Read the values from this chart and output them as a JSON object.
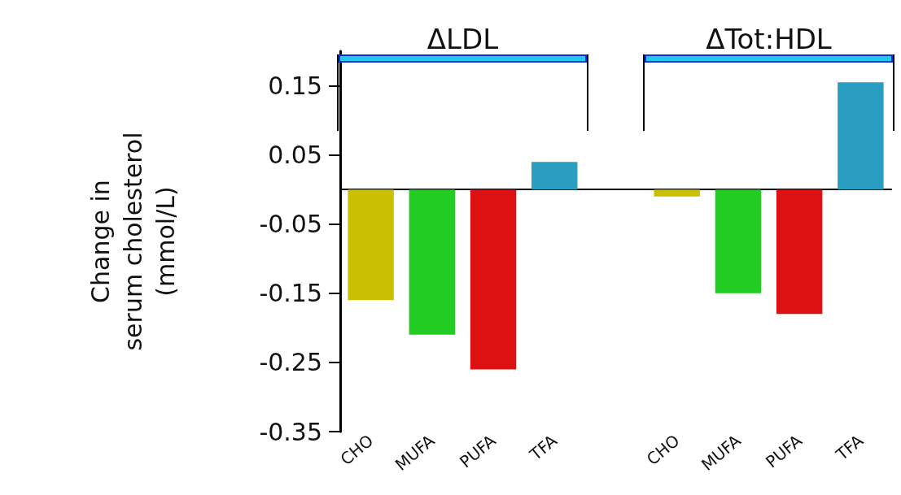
{
  "chart_data": {
    "type": "bar",
    "ylabel": "Change in\nserum cholesterol\n(mmol/L)",
    "categories": [
      "CHO",
      "MUFA",
      "PUFA",
      "TFA",
      null,
      "CHO",
      "MUFA",
      "PUFA",
      "TFA"
    ],
    "values": [
      -0.16,
      -0.21,
      -0.26,
      0.04,
      null,
      -0.01,
      -0.15,
      -0.18,
      0.155
    ],
    "colors": [
      "#c8c000",
      "#22cc22",
      "#dd1111",
      "#2a9ec0",
      null,
      "#c8c000",
      "#22cc22",
      "#dd1111",
      "#2a9ec0"
    ],
    "ylim": [
      -0.35,
      0.2
    ],
    "yticks": [
      -0.35,
      -0.25,
      -0.15,
      -0.05,
      0.05,
      0.15
    ],
    "grid": false,
    "annotations": [
      "ΔLDL",
      "ΔTot:HDL"
    ]
  }
}
